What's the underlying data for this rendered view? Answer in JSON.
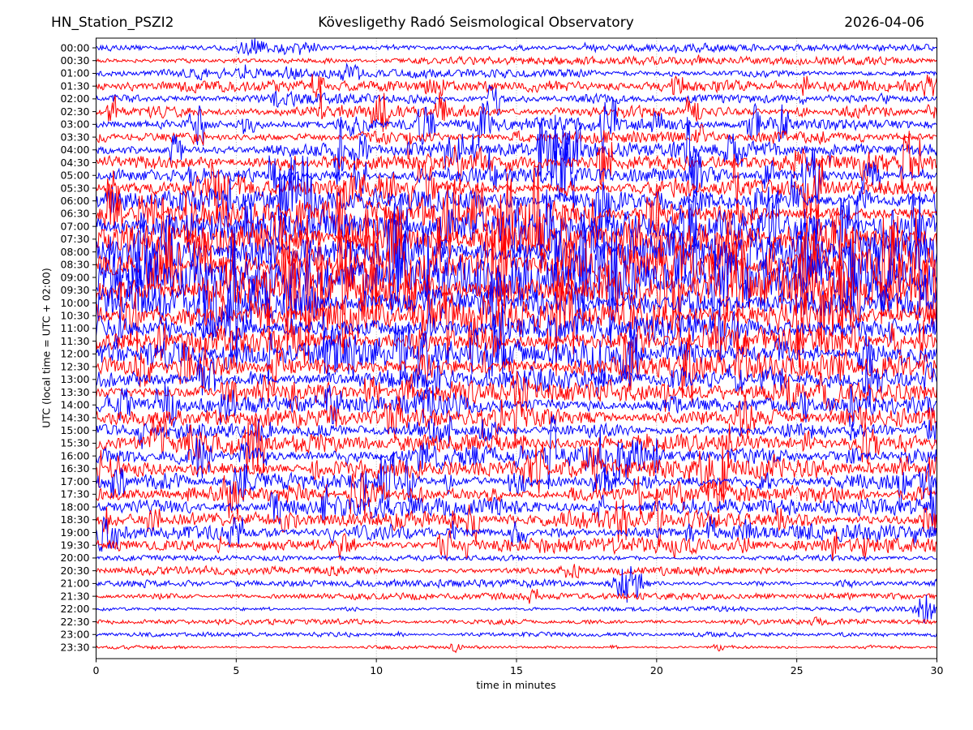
{
  "chart_data": {
    "type": "line",
    "variant": "helicorder-seismogram",
    "title_left": "HN_Station_PSZI2",
    "title_center": "Kövesligethy Radó Seismological Observatory",
    "title_right": "2026-04-06",
    "xlabel": "time in minutes",
    "ylabel": "UTC (local time = UTC + 02:00)",
    "x_range": [
      0,
      30
    ],
    "x_ticks": [
      0,
      5,
      10,
      15,
      20,
      25,
      30
    ],
    "x_gridlines": [
      5,
      10,
      15,
      20,
      25
    ],
    "minutes_per_row": 30,
    "grid_style": "dotted-vertical",
    "trace_colors": {
      "blue": "#0000ff",
      "red": "#ff0000"
    },
    "frame_color": "#000000",
    "gridline_color": "#999999",
    "rows": [
      {
        "label": "00:00",
        "color": "blue",
        "amp": 3.0,
        "spike": 9,
        "density": 0.1,
        "events": [
          {
            "minute": 5.6,
            "width": 0.5,
            "amp": 9
          },
          {
            "minute": 7.4,
            "width": 0.4,
            "amp": 8
          }
        ]
      },
      {
        "label": "00:30",
        "color": "red",
        "amp": 2.6,
        "spike": 7,
        "density": 0.08,
        "events": []
      },
      {
        "label": "01:00",
        "color": "blue",
        "amp": 3.0,
        "spike": 8,
        "density": 0.12,
        "events": [
          {
            "minute": 5.2,
            "width": 0.6,
            "amp": 8
          }
        ]
      },
      {
        "label": "01:30",
        "color": "red",
        "amp": 3.8,
        "spike": 16,
        "density": 0.18,
        "events": []
      },
      {
        "label": "02:00",
        "color": "blue",
        "amp": 4.2,
        "spike": 24,
        "density": 0.22,
        "events": []
      },
      {
        "label": "02:30",
        "color": "red",
        "amp": 4.2,
        "spike": 24,
        "density": 0.22,
        "events": []
      },
      {
        "label": "03:00",
        "color": "blue",
        "amp": 4.5,
        "spike": 26,
        "density": 0.26,
        "events": []
      },
      {
        "label": "03:30",
        "color": "red",
        "amp": 4.8,
        "spike": 26,
        "density": 0.26,
        "events": []
      },
      {
        "label": "04:00",
        "color": "blue",
        "amp": 5.0,
        "spike": 30,
        "density": 0.3,
        "events": []
      },
      {
        "label": "04:30",
        "color": "red",
        "amp": 5.0,
        "spike": 30,
        "density": 0.3,
        "events": []
      },
      {
        "label": "05:00",
        "color": "blue",
        "amp": 5.2,
        "spike": 32,
        "density": 0.32,
        "events": []
      },
      {
        "label": "05:30",
        "color": "red",
        "amp": 5.2,
        "spike": 32,
        "density": 0.32,
        "events": []
      },
      {
        "label": "06:00",
        "color": "blue",
        "amp": 8.0,
        "spike": 40,
        "density": 0.45,
        "events": []
      },
      {
        "label": "06:30",
        "color": "red",
        "amp": 8.5,
        "spike": 42,
        "density": 0.45,
        "events": []
      },
      {
        "label": "07:00",
        "color": "blue",
        "amp": 10.0,
        "spike": 46,
        "density": 0.5,
        "events": []
      },
      {
        "label": "07:30",
        "color": "red",
        "amp": 10.0,
        "spike": 46,
        "density": 0.5,
        "events": []
      },
      {
        "label": "08:00",
        "color": "blue",
        "amp": 13.0,
        "spike": 55,
        "density": 0.8,
        "events": []
      },
      {
        "label": "08:30",
        "color": "red",
        "amp": 13.0,
        "spike": 56,
        "density": 0.8,
        "events": []
      },
      {
        "label": "09:00",
        "color": "blue",
        "amp": 14.0,
        "spike": 58,
        "density": 0.85,
        "events": []
      },
      {
        "label": "09:30",
        "color": "red",
        "amp": 14.0,
        "spike": 58,
        "density": 0.85,
        "events": []
      },
      {
        "label": "10:00",
        "color": "blue",
        "amp": 12.0,
        "spike": 50,
        "density": 0.7,
        "events": []
      },
      {
        "label": "10:30",
        "color": "red",
        "amp": 12.0,
        "spike": 50,
        "density": 0.7,
        "events": []
      },
      {
        "label": "11:00",
        "color": "blue",
        "amp": 10.0,
        "spike": 42,
        "density": 0.55,
        "events": []
      },
      {
        "label": "11:30",
        "color": "red",
        "amp": 9.0,
        "spike": 38,
        "density": 0.5,
        "events": []
      },
      {
        "label": "12:00",
        "color": "blue",
        "amp": 9.0,
        "spike": 36,
        "density": 0.5,
        "events": []
      },
      {
        "label": "12:30",
        "color": "red",
        "amp": 8.5,
        "spike": 34,
        "density": 0.45,
        "events": []
      },
      {
        "label": "13:00",
        "color": "blue",
        "amp": 8.0,
        "spike": 30,
        "density": 0.42,
        "events": []
      },
      {
        "label": "13:30",
        "color": "red",
        "amp": 7.0,
        "spike": 27,
        "density": 0.38,
        "events": []
      },
      {
        "label": "14:00",
        "color": "blue",
        "amp": 6.5,
        "spike": 24,
        "density": 0.35,
        "events": []
      },
      {
        "label": "14:30",
        "color": "red",
        "amp": 6.5,
        "spike": 24,
        "density": 0.35,
        "events": []
      },
      {
        "label": "15:00",
        "color": "blue",
        "amp": 6.0,
        "spike": 22,
        "density": 0.3,
        "events": []
      },
      {
        "label": "15:30",
        "color": "red",
        "amp": 6.0,
        "spike": 22,
        "density": 0.32,
        "events": []
      },
      {
        "label": "16:00",
        "color": "blue",
        "amp": 6.5,
        "spike": 26,
        "density": 0.36,
        "events": []
      },
      {
        "label": "16:30",
        "color": "red",
        "amp": 6.5,
        "spike": 26,
        "density": 0.36,
        "events": []
      },
      {
        "label": "17:00",
        "color": "blue",
        "amp": 6.5,
        "spike": 25,
        "density": 0.36,
        "events": []
      },
      {
        "label": "17:30",
        "color": "red",
        "amp": 6.0,
        "spike": 23,
        "density": 0.32,
        "events": []
      },
      {
        "label": "18:00",
        "color": "blue",
        "amp": 6.5,
        "spike": 25,
        "density": 0.34,
        "events": []
      },
      {
        "label": "18:30",
        "color": "red",
        "amp": 6.0,
        "spike": 23,
        "density": 0.32,
        "events": []
      },
      {
        "label": "19:00",
        "color": "blue",
        "amp": 5.5,
        "spike": 20,
        "density": 0.28,
        "events": []
      },
      {
        "label": "19:30",
        "color": "red",
        "amp": 5.0,
        "spike": 18,
        "density": 0.3,
        "events": []
      },
      {
        "label": "20:00",
        "color": "blue",
        "amp": 1.8,
        "spike": 5,
        "density": 0.06,
        "events": []
      },
      {
        "label": "20:30",
        "color": "red",
        "amp": 2.8,
        "spike": 7,
        "density": 0.1,
        "events": []
      },
      {
        "label": "21:00",
        "color": "blue",
        "amp": 2.6,
        "spike": 6,
        "density": 0.09,
        "events": [
          {
            "minute": 19.0,
            "width": 0.5,
            "amp": 26
          }
        ]
      },
      {
        "label": "21:30",
        "color": "red",
        "amp": 2.2,
        "spike": 6,
        "density": 0.08,
        "events": [
          {
            "minute": 15.6,
            "width": 0.4,
            "amp": 7
          }
        ]
      },
      {
        "label": "22:00",
        "color": "blue",
        "amp": 1.7,
        "spike": 4,
        "density": 0.06,
        "events": [
          {
            "minute": 29.6,
            "width": 0.35,
            "amp": 18
          }
        ]
      },
      {
        "label": "22:30",
        "color": "red",
        "amp": 1.8,
        "spike": 5,
        "density": 0.06,
        "events": []
      },
      {
        "label": "23:00",
        "color": "blue",
        "amp": 1.5,
        "spike": 4,
        "density": 0.05,
        "events": []
      },
      {
        "label": "23:30",
        "color": "red",
        "amp": 1.3,
        "spike": 5,
        "density": 0.06,
        "events": [
          {
            "minute": 12.8,
            "width": 0.25,
            "amp": 6
          },
          {
            "minute": 22.2,
            "width": 0.4,
            "amp": 5
          }
        ]
      }
    ]
  }
}
